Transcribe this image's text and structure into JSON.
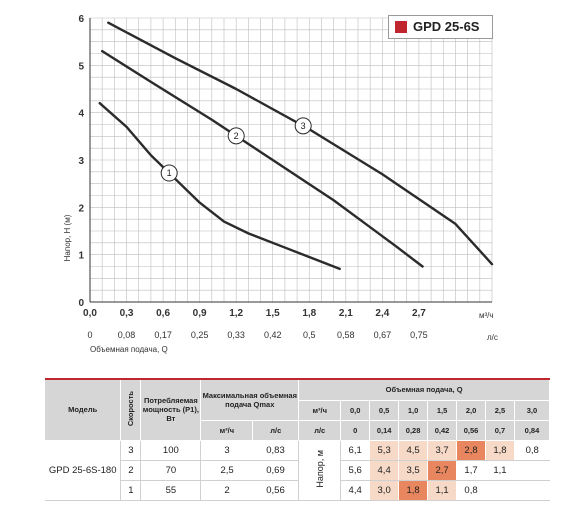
{
  "chart_data": {
    "type": "line",
    "title": "GPD 25-6S",
    "ylabel": "Напор, H (м)",
    "xlabel": "Объемная подача, Q",
    "x_unit": "м³/ч",
    "x2_unit": "л/с",
    "xlim": [
      0,
      3.3
    ],
    "ylim": [
      0,
      6
    ],
    "x_ticks": [
      "0,0",
      "0,3",
      "0,6",
      "0,9",
      "1,2",
      "1,5",
      "1,8",
      "2,1",
      "2,4",
      "2,7"
    ],
    "x2_ticks": [
      "0",
      "0,08",
      "0,17",
      "0,25",
      "0,33",
      "0,42",
      "0,5",
      "0,58",
      "0,67",
      "0,75"
    ],
    "y_ticks": [
      "0",
      "1",
      "2",
      "3",
      "4",
      "5",
      "6"
    ],
    "grid": true,
    "series": [
      {
        "name": "1",
        "x": [
          0.08,
          0.3,
          0.5,
          0.7,
          0.9,
          1.1,
          1.3,
          1.6,
          1.9,
          2.05
        ],
        "y": [
          4.2,
          3.7,
          3.1,
          2.6,
          2.1,
          1.7,
          1.45,
          1.15,
          0.85,
          0.7
        ]
      },
      {
        "name": "2",
        "x": [
          0.1,
          0.5,
          1.0,
          1.5,
          2.0,
          2.5,
          2.73
        ],
        "y": [
          5.3,
          4.65,
          3.85,
          3.0,
          2.15,
          1.2,
          0.75
        ]
      },
      {
        "name": "3",
        "x": [
          0.15,
          0.7,
          1.2,
          1.8,
          2.4,
          3.0,
          3.3
        ],
        "y": [
          5.9,
          5.15,
          4.5,
          3.65,
          2.7,
          1.65,
          0.8
        ]
      }
    ],
    "annotations": [
      "1",
      "2",
      "3"
    ]
  },
  "legend": {
    "label": "GPD 25-6S",
    "color": "#c0262d"
  },
  "table": {
    "headers": {
      "model": "Модель",
      "speed": "Скорость",
      "power": "Потребляемая мощность (P1), Вт",
      "qmax": "Максимальная объемная подача Qmax",
      "qmax_m3h": "м³/ч",
      "qmax_ls": "л/с",
      "flow": "Объемная подача, Q",
      "flow_m3h": "м³/ч",
      "flow_ls": "л/с",
      "head": "Напор, м"
    },
    "flow_m3h": [
      "0,0",
      "0,5",
      "1,0",
      "1,5",
      "2,0",
      "2,5",
      "3,0"
    ],
    "flow_ls": [
      "0",
      "0,14",
      "0,28",
      "0,42",
      "0,56",
      "0,7",
      "0,84"
    ],
    "model": "GPD 25-6S-180",
    "rows": [
      {
        "speed": "3",
        "power": "100",
        "qmax_m3h": "3",
        "qmax_ls": "0,83",
        "heads": [
          "6,1",
          "5,3",
          "4,5",
          "3,7",
          "2,8",
          "1,8",
          "0,8"
        ]
      },
      {
        "speed": "2",
        "power": "70",
        "qmax_m3h": "2,5",
        "qmax_ls": "0,69",
        "heads": [
          "5,6",
          "4,4",
          "3,5",
          "2,7",
          "1,7",
          "1,1",
          ""
        ]
      },
      {
        "speed": "1",
        "power": "55",
        "qmax_m3h": "2",
        "qmax_ls": "0,56",
        "heads": [
          "4,4",
          "3,0",
          "1,8",
          "1,1",
          "0,8",
          "",
          ""
        ]
      }
    ],
    "shading": {
      "light": "#f6d9c7",
      "mid": "#f0b597",
      "dark": "#e8875f"
    }
  }
}
